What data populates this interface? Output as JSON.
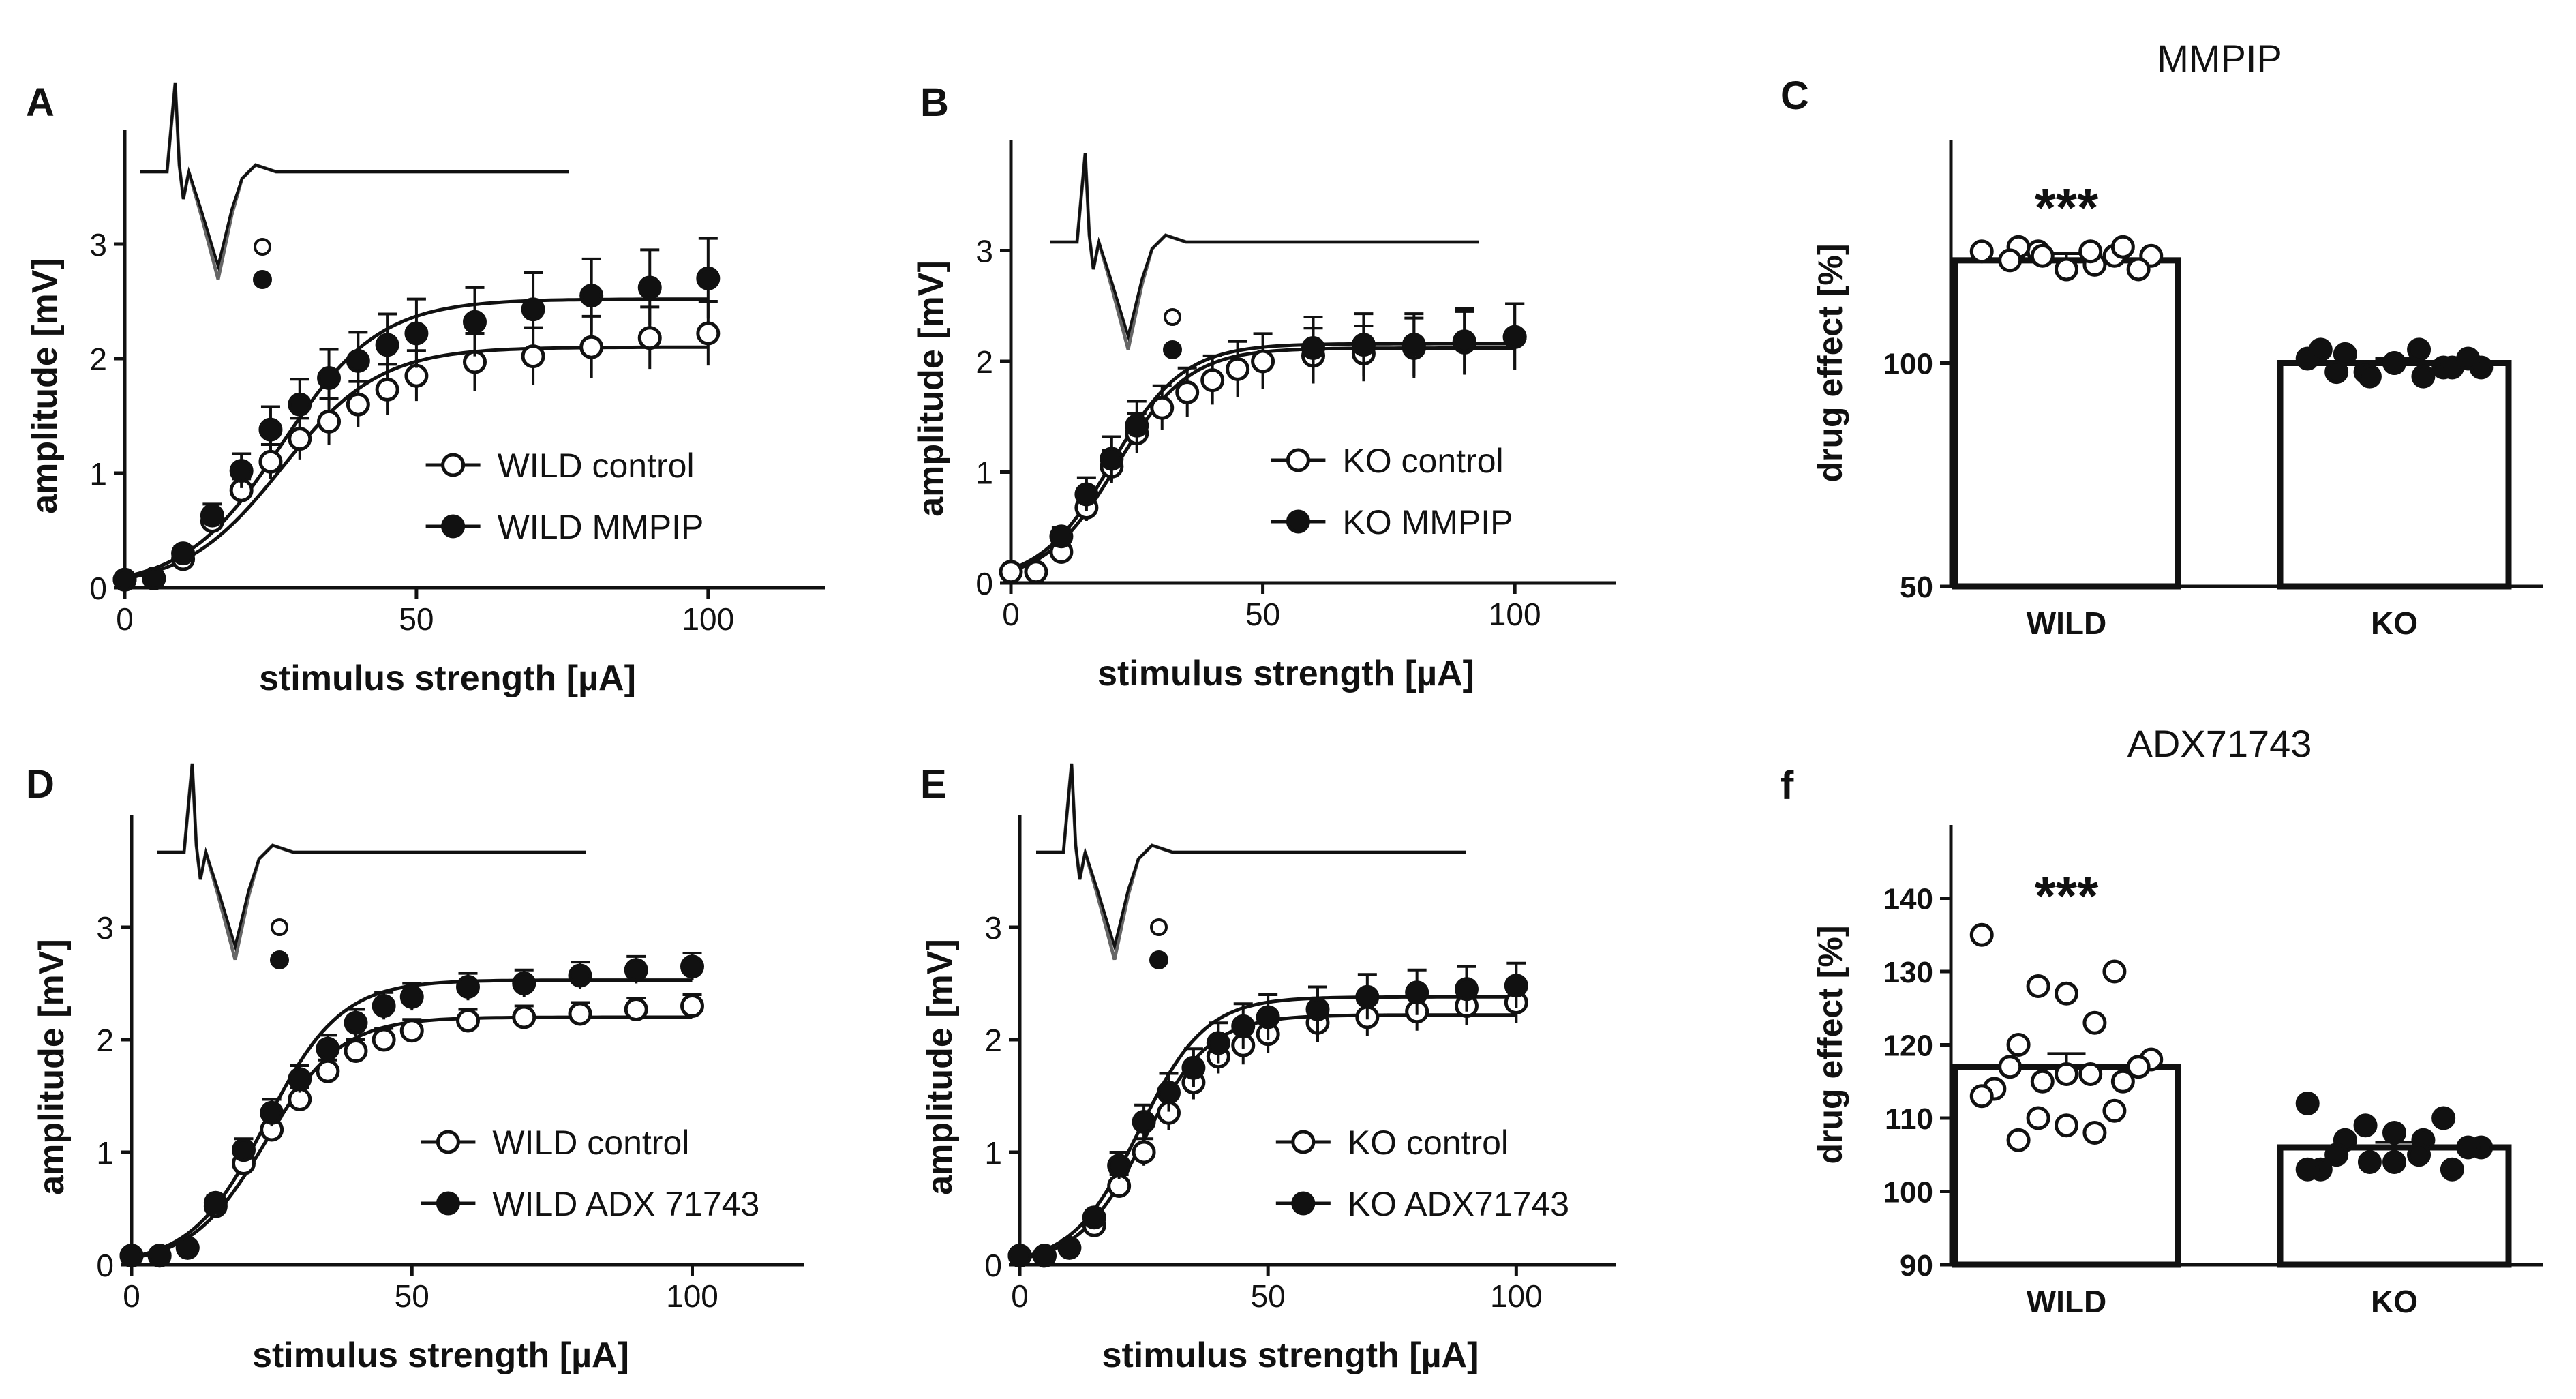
{
  "figure": {
    "background": "#ffffff",
    "ink": "#111111",
    "trace_gray": "#666666"
  },
  "chart_data": [
    {
      "panel": "A",
      "type": "line-scatter",
      "xlabel": "stimulus strength [µA]",
      "ylabel": "amplitude [mV]",
      "xlim": [
        0,
        120
      ],
      "ylim": [
        0,
        4
      ],
      "xticks": [
        "0",
        "50",
        "100"
      ],
      "yticks": [
        "0",
        "1",
        "2",
        "3"
      ],
      "series": [
        {
          "name": "WILD control",
          "marker": "open",
          "x": [
            0,
            5,
            10,
            15,
            20,
            25,
            30,
            35,
            40,
            45,
            50,
            60,
            70,
            80,
            90,
            100
          ],
          "y": [
            0.07,
            0.08,
            0.25,
            0.58,
            0.85,
            1.1,
            1.3,
            1.45,
            1.6,
            1.73,
            1.85,
            1.97,
            2.02,
            2.1,
            2.18,
            2.22
          ],
          "err": [
            0.02,
            0.02,
            0.05,
            0.08,
            0.1,
            0.15,
            0.18,
            0.2,
            0.2,
            0.22,
            0.22,
            0.25,
            0.25,
            0.27,
            0.27,
            0.28
          ],
          "fit": {
            "top": 2.1,
            "x50": 27,
            "slope": 0.12
          }
        },
        {
          "name": "WILD MMPIP",
          "marker": "filled",
          "x": [
            0,
            5,
            10,
            15,
            20,
            25,
            30,
            35,
            40,
            45,
            50,
            60,
            70,
            80,
            90,
            100
          ],
          "y": [
            0.07,
            0.08,
            0.3,
            0.63,
            1.02,
            1.38,
            1.6,
            1.83,
            1.98,
            2.12,
            2.22,
            2.32,
            2.43,
            2.55,
            2.62,
            2.7
          ],
          "err": [
            0.02,
            0.02,
            0.06,
            0.1,
            0.15,
            0.2,
            0.22,
            0.25,
            0.25,
            0.27,
            0.3,
            0.3,
            0.32,
            0.32,
            0.33,
            0.35
          ],
          "fit": {
            "top": 2.52,
            "x50": 27,
            "slope": 0.12
          }
        }
      ],
      "legend": [
        "WILD control",
        "WILD MMPIP"
      ]
    },
    {
      "panel": "B",
      "type": "line-scatter",
      "xlabel": "stimulus strength [µA]",
      "ylabel": "amplitude [mV]",
      "xlim": [
        0,
        120
      ],
      "ylim": [
        0,
        4
      ],
      "xticks": [
        "0",
        "50",
        "100"
      ],
      "yticks": [
        "0",
        "1",
        "2",
        "3"
      ],
      "series": [
        {
          "name": "KO control",
          "marker": "open",
          "x": [
            0,
            5,
            10,
            15,
            20,
            25,
            30,
            35,
            40,
            45,
            50,
            60,
            70,
            80,
            90,
            100
          ],
          "y": [
            0.1,
            0.1,
            0.28,
            0.68,
            1.05,
            1.35,
            1.58,
            1.72,
            1.83,
            1.93,
            2.0,
            2.05,
            2.07,
            2.12,
            2.17,
            2.22
          ],
          "err": [
            0.02,
            0.02,
            0.06,
            0.12,
            0.15,
            0.18,
            0.2,
            0.22,
            0.22,
            0.25,
            0.25,
            0.25,
            0.25,
            0.27,
            0.28,
            0.3
          ],
          "fit": {
            "top": 2.12,
            "x50": 21,
            "slope": 0.14
          }
        },
        {
          "name": "KO MMPIP",
          "marker": "filled",
          "x": [
            10,
            15,
            20,
            25,
            60,
            70,
            80,
            90,
            100
          ],
          "y": [
            0.42,
            0.8,
            1.12,
            1.42,
            2.12,
            2.15,
            2.15,
            2.18,
            2.22
          ],
          "err": [
            0.08,
            0.15,
            0.2,
            0.22,
            0.28,
            0.28,
            0.28,
            0.3,
            0.3
          ],
          "fit": {
            "top": 2.16,
            "x50": 20,
            "slope": 0.14
          }
        }
      ],
      "legend": [
        "KO control",
        "KO MMPIP"
      ]
    },
    {
      "panel": "C",
      "type": "bar-scatter",
      "title": "MMPIP",
      "ylabel": "drug effect [%]",
      "ylim": [
        50,
        150
      ],
      "yticks": [
        "50",
        "100"
      ],
      "categories": [
        "WILD",
        "KO"
      ],
      "values": [
        123,
        100
      ],
      "sem": [
        1.5,
        1.0
      ],
      "points": [
        [
          125,
          124,
          125,
          121,
          122,
          126,
          124,
          121,
          123,
          125,
          121,
          124,
          126
        ],
        [
          101,
          99,
          98,
          100,
          97,
          102,
          99,
          101,
          98,
          103,
          100,
          97,
          99,
          103
        ]
      ],
      "significance": [
        "***",
        ""
      ]
    },
    {
      "panel": "D",
      "type": "line-scatter",
      "xlabel": "stimulus strength [µA]",
      "ylabel": "amplitude [mV]",
      "xlim": [
        0,
        120
      ],
      "ylim": [
        0,
        4
      ],
      "xticks": [
        "0",
        "50",
        "100"
      ],
      "yticks": [
        "0",
        "1",
        "2",
        "3"
      ],
      "series": [
        {
          "name": "WILD control",
          "marker": "open",
          "x": [
            0,
            5,
            10,
            15,
            20,
            25,
            30,
            35,
            40,
            45,
            50,
            60,
            70,
            80,
            90,
            100
          ],
          "y": [
            0.08,
            0.08,
            0.15,
            0.52,
            0.9,
            1.2,
            1.47,
            1.72,
            1.9,
            2.0,
            2.08,
            2.17,
            2.2,
            2.23,
            2.27,
            2.3
          ],
          "err": [
            0.02,
            0.02,
            0.04,
            0.06,
            0.08,
            0.1,
            0.1,
            0.1,
            0.1,
            0.1,
            0.1,
            0.1,
            0.1,
            0.1,
            0.1,
            0.1
          ],
          "fit": {
            "top": 2.2,
            "x50": 24,
            "slope": 0.15
          }
        },
        {
          "name": "WILD ADX 71743",
          "marker": "filled",
          "x": [
            0,
            5,
            10,
            15,
            20,
            25,
            30,
            35,
            40,
            45,
            50,
            60,
            70,
            80,
            90,
            100
          ],
          "y": [
            0.08,
            0.08,
            0.15,
            0.55,
            1.02,
            1.35,
            1.65,
            1.92,
            2.15,
            2.3,
            2.38,
            2.47,
            2.5,
            2.57,
            2.62,
            2.65
          ],
          "err": [
            0.02,
            0.02,
            0.04,
            0.06,
            0.1,
            0.12,
            0.12,
            0.12,
            0.12,
            0.12,
            0.12,
            0.12,
            0.12,
            0.12,
            0.12,
            0.12
          ],
          "fit": {
            "top": 2.53,
            "x50": 24,
            "slope": 0.15
          }
        }
      ],
      "legend": [
        "WILD control",
        "WILD ADX 71743"
      ]
    },
    {
      "panel": "E",
      "type": "line-scatter",
      "xlabel": "stimulus strength [µA]",
      "ylabel": "amplitude [mV]",
      "xlim": [
        0,
        120
      ],
      "ylim": [
        0,
        4
      ],
      "xticks": [
        "0",
        "50",
        "100"
      ],
      "yticks": [
        "0",
        "1",
        "2",
        "3"
      ],
      "series": [
        {
          "name": "KO control",
          "marker": "open",
          "x": [
            0,
            5,
            10,
            15,
            20,
            25,
            30,
            35,
            40,
            45,
            50,
            60,
            70,
            80,
            90,
            100
          ],
          "y": [
            0.08,
            0.08,
            0.15,
            0.35,
            0.7,
            1.0,
            1.35,
            1.62,
            1.85,
            1.95,
            2.05,
            2.15,
            2.2,
            2.25,
            2.3,
            2.33
          ],
          "err": [
            0.02,
            0.02,
            0.04,
            0.06,
            0.1,
            0.12,
            0.15,
            0.15,
            0.15,
            0.17,
            0.17,
            0.17,
            0.17,
            0.17,
            0.17,
            0.18
          ],
          "fit": {
            "top": 2.22,
            "x50": 25,
            "slope": 0.15
          }
        },
        {
          "name": "KO ADX71743",
          "marker": "filled",
          "x": [
            0,
            5,
            10,
            15,
            20,
            25,
            30,
            35,
            40,
            45,
            50,
            60,
            70,
            80,
            90,
            100
          ],
          "y": [
            0.08,
            0.08,
            0.15,
            0.42,
            0.88,
            1.27,
            1.53,
            1.75,
            1.97,
            2.12,
            2.2,
            2.27,
            2.38,
            2.42,
            2.45,
            2.48
          ],
          "err": [
            0.02,
            0.02,
            0.04,
            0.06,
            0.12,
            0.15,
            0.17,
            0.17,
            0.18,
            0.2,
            0.2,
            0.2,
            0.2,
            0.2,
            0.2,
            0.2
          ],
          "fit": {
            "top": 2.38,
            "x50": 24,
            "slope": 0.15
          }
        }
      ],
      "legend": [
        "KO control",
        "KO ADX71743"
      ]
    },
    {
      "panel": "f",
      "type": "bar-scatter",
      "title": "ADX71743",
      "ylabel": "drug effect [%]",
      "ylim": [
        90,
        150
      ],
      "yticks": [
        "90",
        "100",
        "110",
        "120",
        "130",
        "140"
      ],
      "categories": [
        "WILD",
        "KO"
      ],
      "values": [
        117,
        106
      ],
      "sem": [
        1.8,
        0.7
      ],
      "points": [
        [
          135,
          130,
          128,
          127,
          123,
          120,
          118,
          117,
          117,
          116,
          116,
          115,
          115,
          114,
          113,
          111,
          110,
          109,
          108,
          107
        ],
        [
          112,
          110,
          109,
          108,
          107,
          107,
          106,
          106,
          105,
          105,
          104,
          104,
          103,
          103,
          103
        ]
      ],
      "significance": [
        "***",
        ""
      ]
    }
  ]
}
